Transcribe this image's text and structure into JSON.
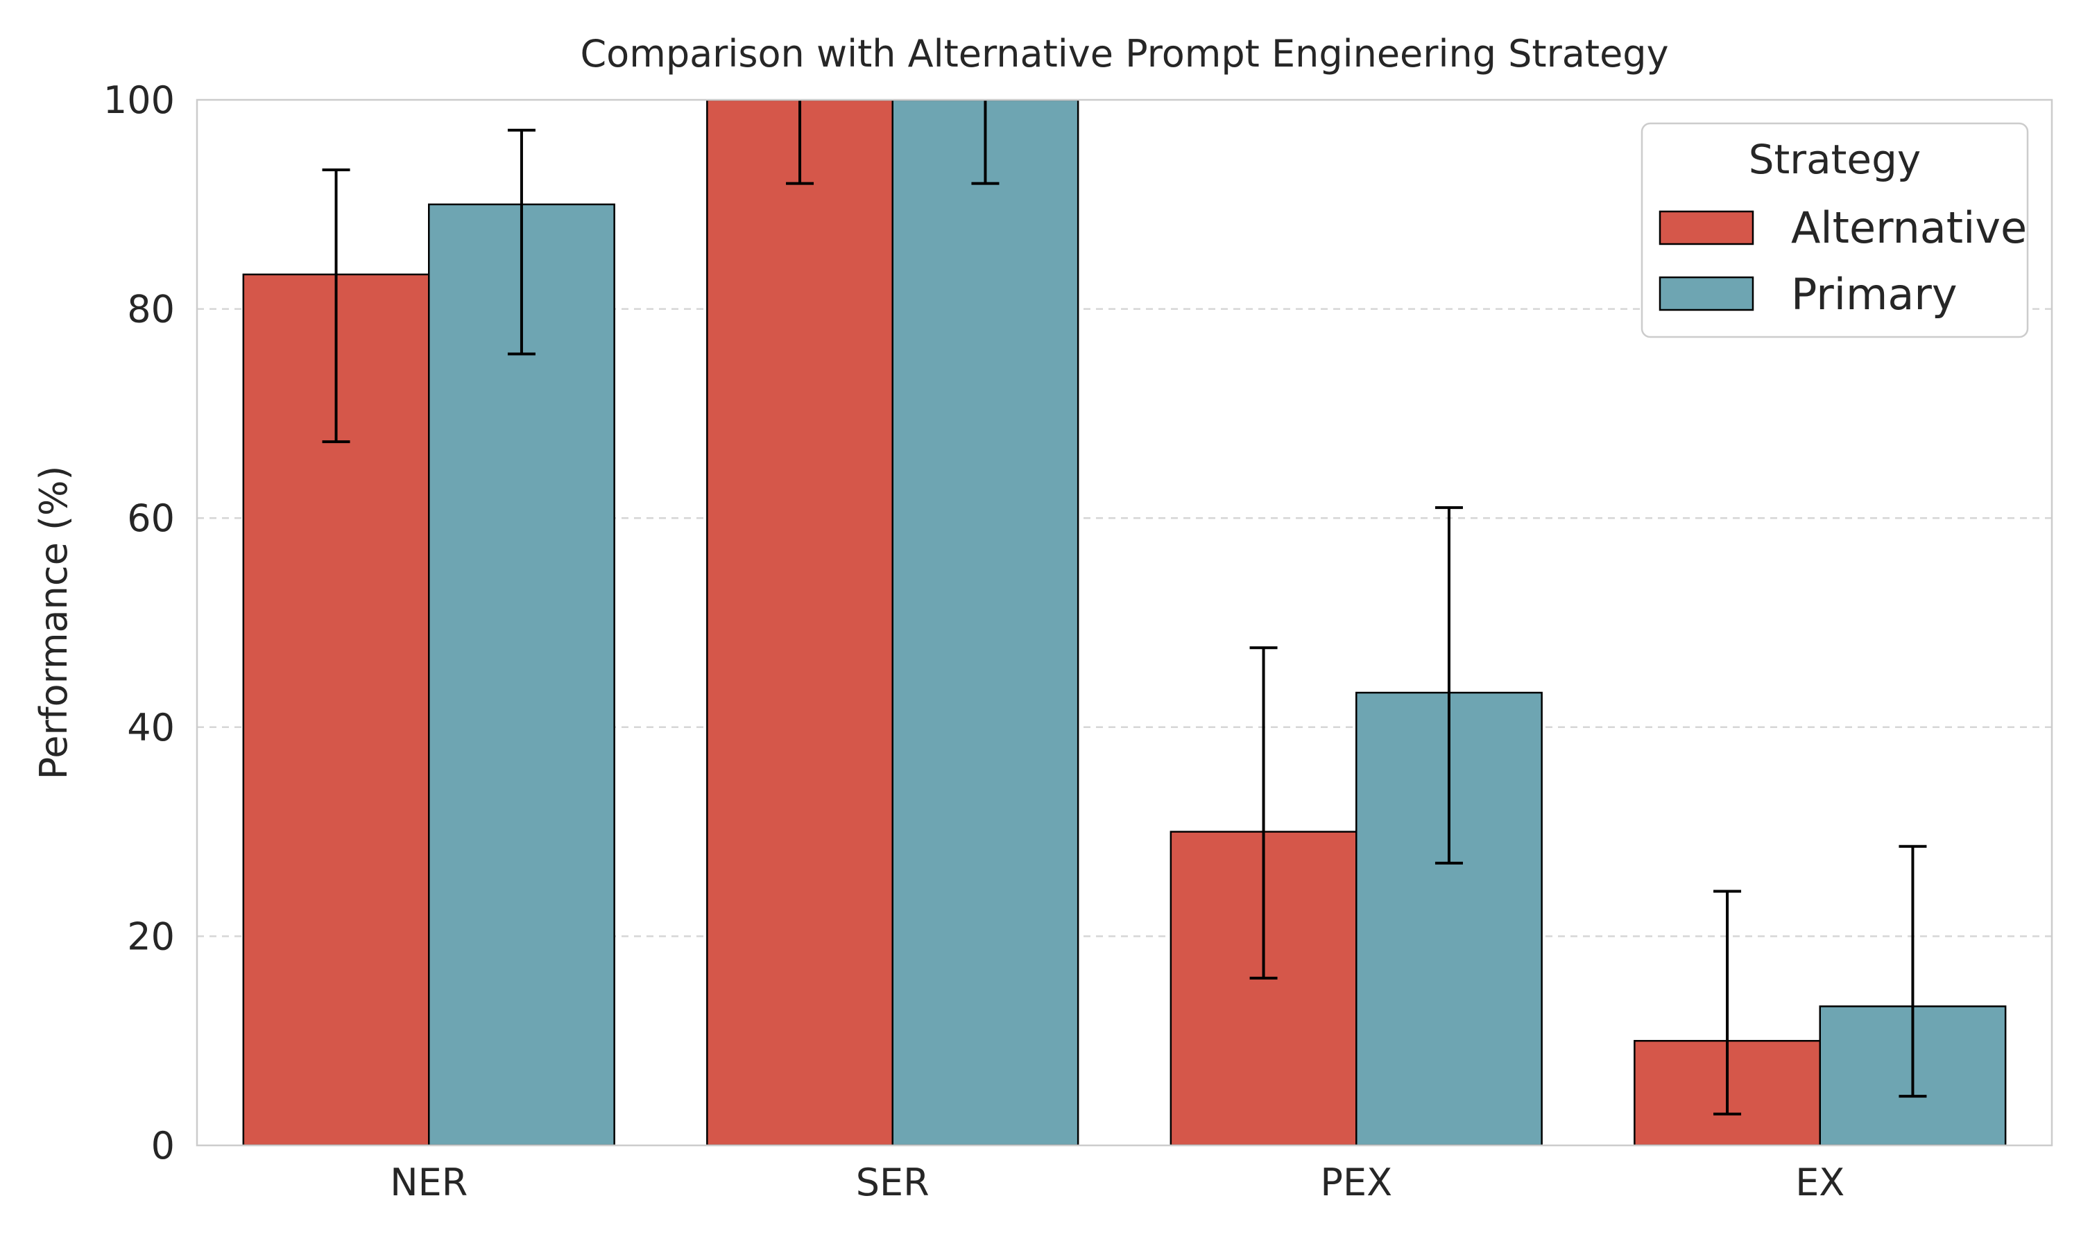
{
  "chart_data": {
    "type": "bar",
    "title": "Comparison with Alternative Prompt Engineering Strategy",
    "xlabel": "",
    "ylabel": "Performance (%)",
    "categories": [
      "NER",
      "SER",
      "PEX",
      "EX"
    ],
    "ylim": [
      0,
      100
    ],
    "yticks": [
      "0",
      "20",
      "40",
      "60",
      "80",
      "100"
    ],
    "grid": "y-dashed",
    "legend": {
      "title": "Strategy",
      "placement": "top-right"
    },
    "series": [
      {
        "name": "Alternative",
        "color": "#d5574a",
        "values": [
          83.3,
          100,
          30,
          10
        ],
        "error": [
          [
            67.3,
            93.3
          ],
          [
            92,
            108
          ],
          [
            16,
            47.6
          ],
          [
            3,
            24.3
          ]
        ]
      },
      {
        "name": "Primary",
        "color": "#6ea5b2",
        "values": [
          90,
          100,
          43.3,
          13.3
        ],
        "error": [
          [
            75.7,
            97.1
          ],
          [
            92,
            108
          ],
          [
            27,
            61
          ],
          [
            4.7,
            28.6
          ]
        ]
      }
    ]
  }
}
